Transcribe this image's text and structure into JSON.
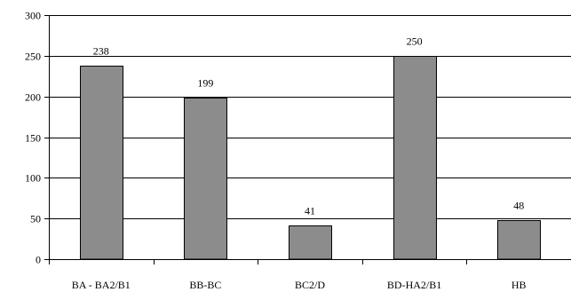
{
  "chart_data": {
    "type": "bar",
    "categories": [
      "BA - BA2/B1",
      "BB-BC",
      "BC2/D",
      "BD-HA2/B1",
      "HB"
    ],
    "values": [
      238,
      199,
      41,
      250,
      48
    ],
    "data_labels": [
      "238",
      "199",
      "41",
      "250",
      "48"
    ],
    "title": "",
    "xlabel": "",
    "ylabel": "",
    "ylim": [
      0,
      300
    ],
    "yticks": [
      0,
      50,
      100,
      150,
      200,
      250,
      300
    ],
    "grid": true,
    "legend": "none",
    "colors": {
      "bar_fill": "#8c8c8c",
      "bar_stroke": "#000000",
      "grid": "#000000",
      "axis": "#000000"
    }
  }
}
